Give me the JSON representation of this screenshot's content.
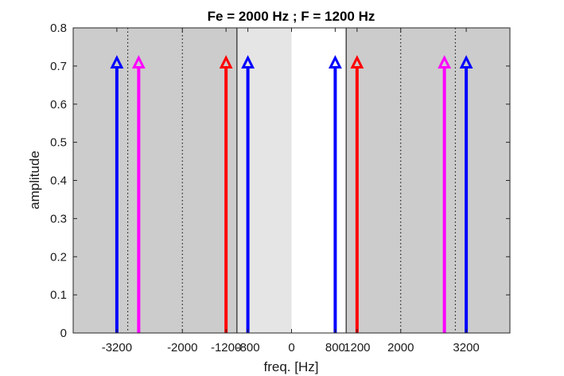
{
  "chart_data": {
    "type": "stem",
    "title": "Fe = 2000 Hz ; F = 1200 Hz",
    "xlabel": "freq. [Hz]",
    "ylabel": "amplitude",
    "xlim": [
      -4000,
      4000
    ],
    "ylim": [
      0,
      0.8
    ],
    "xticks": [
      {
        "value": -3200,
        "label": "-3200"
      },
      {
        "value": -2000,
        "label": "-2000"
      },
      {
        "value": -1200,
        "label": "-1200"
      },
      {
        "value": -800,
        "label": "-800"
      },
      {
        "value": 0,
        "label": "0"
      },
      {
        "value": 800,
        "label": "800"
      },
      {
        "value": 1200,
        "label": "1200"
      },
      {
        "value": 2000,
        "label": "2000"
      },
      {
        "value": 3200,
        "label": "3200"
      }
    ],
    "yticks": [
      {
        "value": 0,
        "label": "0"
      },
      {
        "value": 0.1,
        "label": "0.1"
      },
      {
        "value": 0.2,
        "label": "0.2"
      },
      {
        "value": 0.3,
        "label": "0.3"
      },
      {
        "value": 0.4,
        "label": "0.4"
      },
      {
        "value": 0.5,
        "label": "0.5"
      },
      {
        "value": 0.6,
        "label": "0.6"
      },
      {
        "value": 0.7,
        "label": "0.7"
      },
      {
        "value": 0.8,
        "label": "0.8"
      }
    ],
    "shaded_regions": [
      {
        "x0": -4000,
        "x1": -1000,
        "color": "#cccccc"
      },
      {
        "x0": -1000,
        "x1": 0,
        "color": "#e5e5e5"
      },
      {
        "x0": 1000,
        "x1": 4000,
        "color": "#cccccc"
      }
    ],
    "boundary_lines": [
      -1000,
      1000
    ],
    "dotted_lines": [
      -3000,
      -2000,
      2000,
      3000
    ],
    "series": [
      {
        "name": "blue",
        "color": "#0000ff",
        "x": [
          -3200,
          -800,
          800,
          3200
        ],
        "y": [
          0.707,
          0.707,
          0.707,
          0.707
        ]
      },
      {
        "name": "magenta",
        "color": "#ff00ff",
        "x": [
          -2800,
          2800
        ],
        "y": [
          0.707,
          0.707
        ]
      },
      {
        "name": "red",
        "color": "#ff0000",
        "x": [
          -1200,
          1200
        ],
        "y": [
          0.707,
          0.707
        ]
      }
    ]
  }
}
